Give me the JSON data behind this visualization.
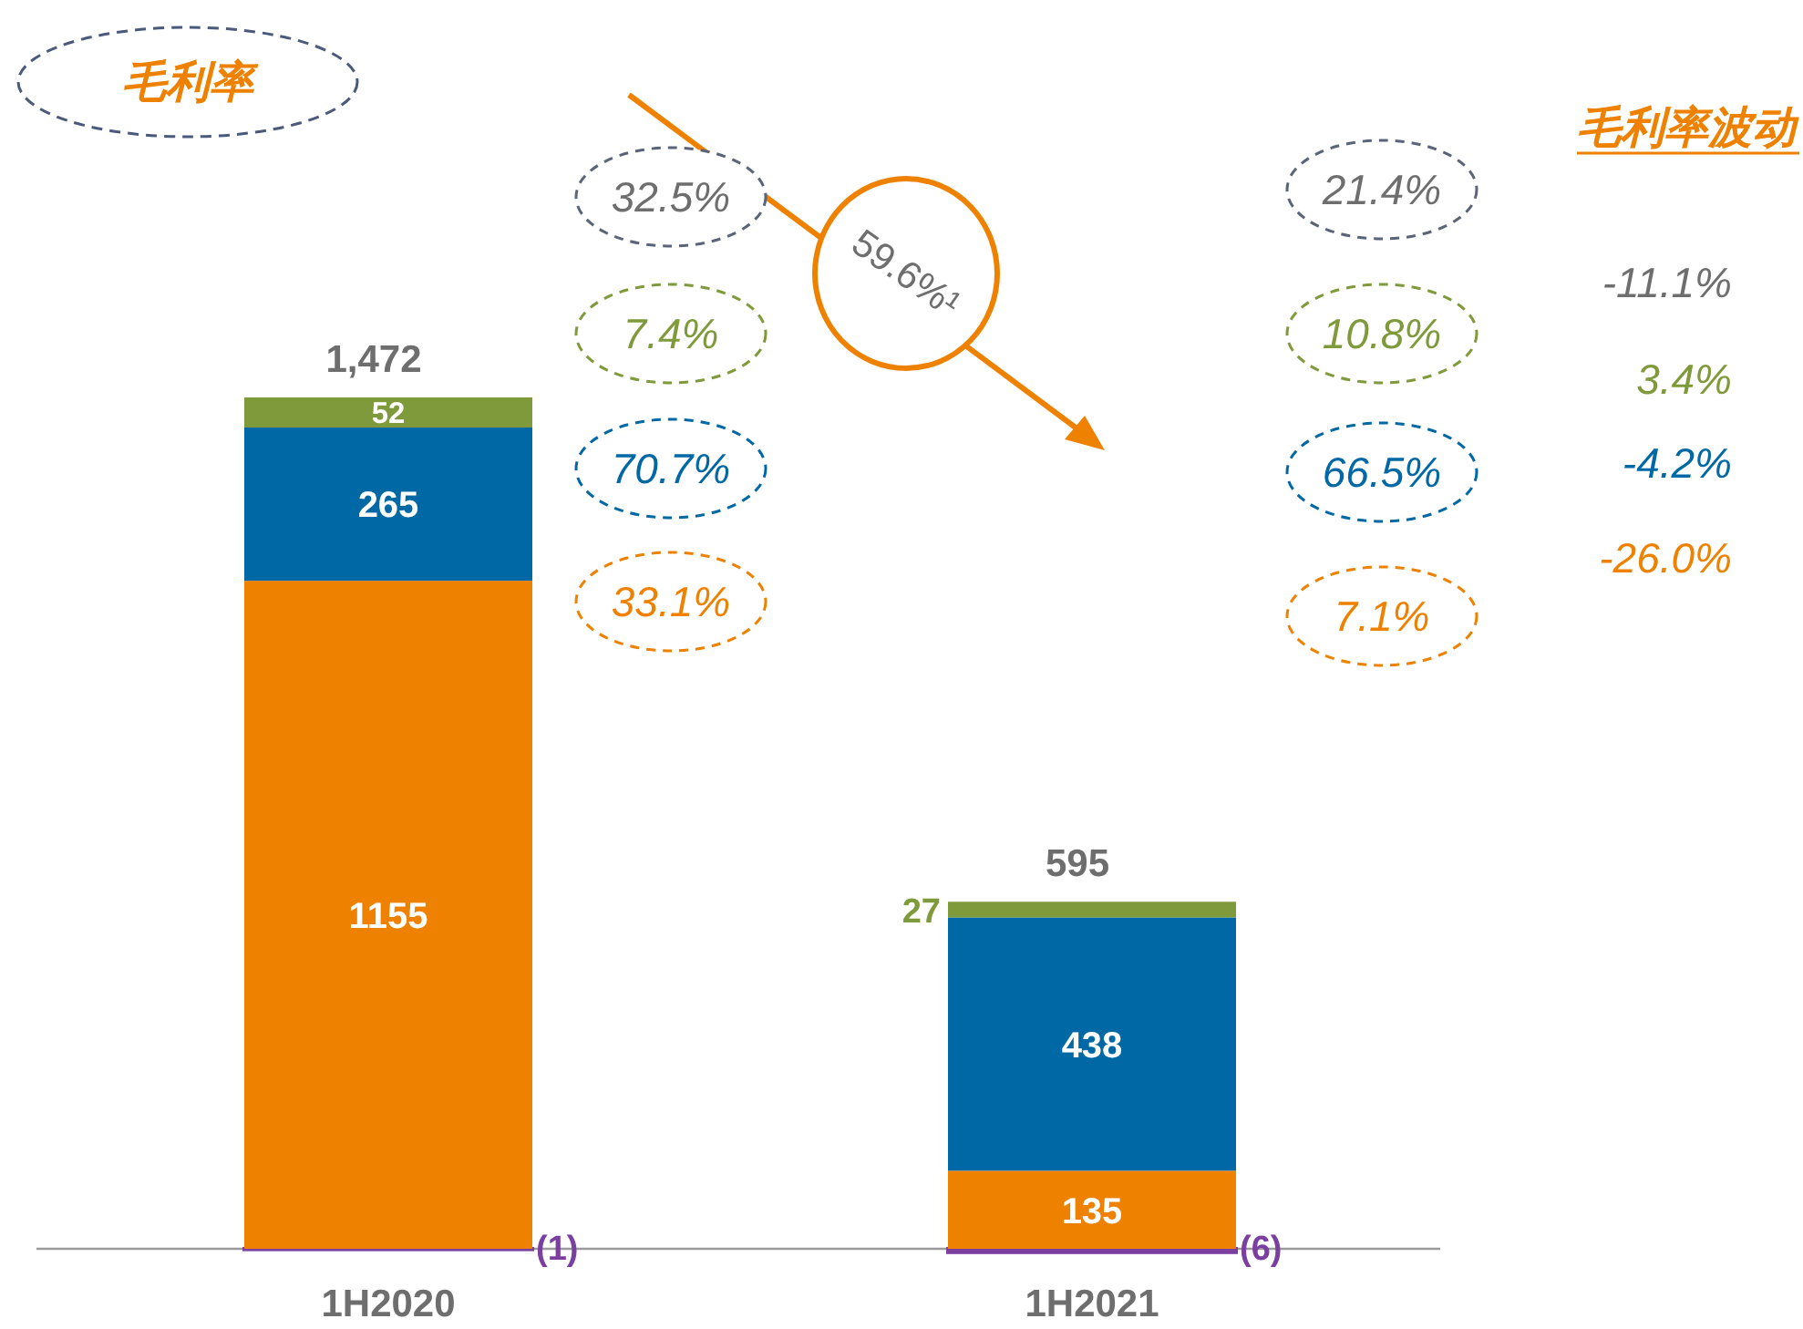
{
  "chart_data": {
    "type": "bar",
    "stacked": true,
    "title": "毛利率",
    "categories": [
      "1H2020",
      "1H2021"
    ],
    "series": [
      {
        "color": "#7b3fa0",
        "values": [
          -1,
          -6
        ],
        "value_labels": [
          "(1)",
          "(6)"
        ]
      },
      {
        "color": "#ee8100",
        "values": [
          1155,
          135
        ],
        "value_labels": [
          "1155",
          "135"
        ]
      },
      {
        "color": "#0068a5",
        "values": [
          265,
          438
        ],
        "value_labels": [
          "265",
          "438"
        ]
      },
      {
        "color": "#7f9a3a",
        "values": [
          52,
          27
        ],
        "value_labels": [
          "52",
          "27"
        ]
      }
    ],
    "totals": [
      "1,472",
      "595"
    ],
    "annotations": [
      "32.5%",
      "7.4%",
      "70.7%",
      "33.1%",
      "21.4%",
      "10.8%",
      "66.5%",
      "7.1%",
      "59.6%¹",
      "毛利率波动",
      "-11.1%",
      "3.4%",
      "-4.2%",
      "-26.0%"
    ]
  }
}
